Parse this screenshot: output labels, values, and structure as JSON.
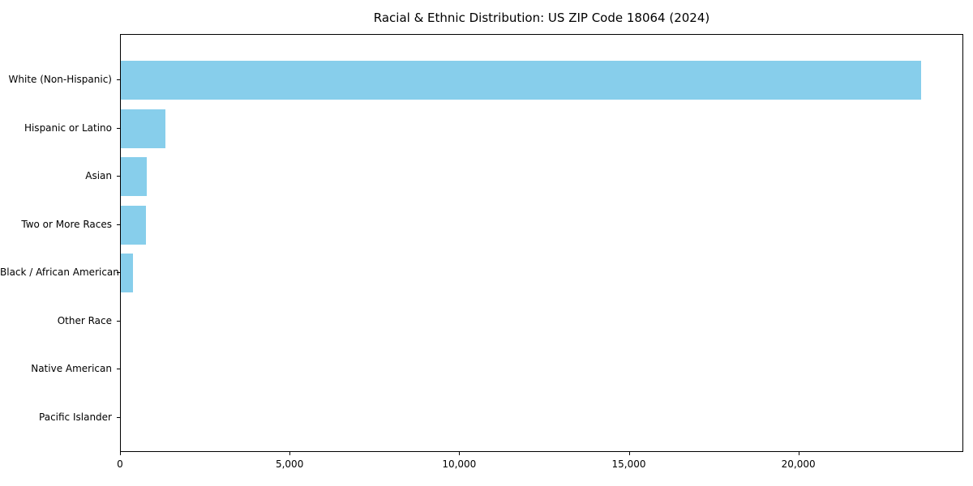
{
  "figure": {
    "background": "#ffffff",
    "spine_color": "#000000",
    "text_color": "#000000"
  },
  "chart_data": {
    "type": "bar",
    "orientation": "horizontal",
    "title": "Racial & Ethnic Distribution: US ZIP Code 18064 (2024)",
    "xlabel": "",
    "ylabel": "",
    "categories": [
      "White (Non-Hispanic)",
      "Hispanic or Latino",
      "Asian",
      "Two or More Races",
      "Black / African American",
      "Other Race",
      "Native American",
      "Pacific Islander"
    ],
    "values": [
      23600,
      1320,
      770,
      750,
      350,
      0,
      0,
      0
    ],
    "bar_color": "#87CEEB",
    "xlim": [
      0,
      24860
    ],
    "x_ticks": [
      0,
      5000,
      10000,
      15000,
      20000
    ],
    "x_tick_labels": [
      "0",
      "5,000",
      "10,000",
      "15,000",
      "20,000"
    ],
    "grid": false,
    "legend": null
  }
}
